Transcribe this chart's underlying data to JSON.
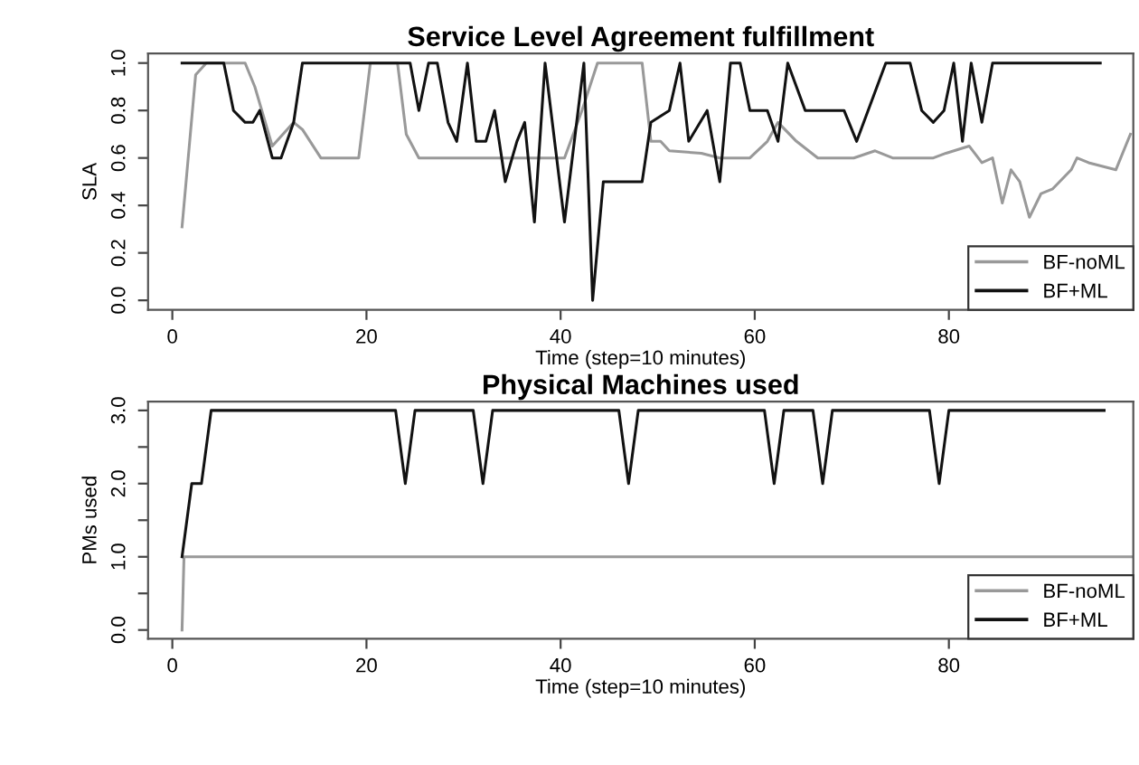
{
  "chart_data": [
    {
      "type": "line",
      "title": "Service Level Agreement fulfillment",
      "xlabel": "Time (step=10 minutes)",
      "ylabel": "SLA",
      "xlim": [
        -2.5,
        99
      ],
      "xticks": [
        0,
        20,
        40,
        60,
        80
      ],
      "ylim": [
        -0.04,
        1.04
      ],
      "yticks": [
        {
          "value": 0,
          "label": "0.0"
        },
        0.2,
        0.4,
        0.6,
        0.8,
        {
          "value": 1,
          "label": "1.0"
        }
      ],
      "legend": "bottom right",
      "grid": false,
      "series": [
        {
          "name": "BF-noML",
          "color": "#999999",
          "x": [
            1,
            2.4,
            3.5,
            7.5,
            8.5,
            10.3,
            12.5,
            13.4,
            15.3,
            19.2,
            20.4,
            23.2,
            24.1,
            25.4,
            40.4,
            42.2,
            43.8,
            48.4,
            49.3,
            50.3,
            51.2,
            54.5,
            56.4,
            59.5,
            61.3,
            62.4,
            64.3,
            66.5,
            70.2,
            72.4,
            74.2,
            78.4,
            79.7,
            82.1,
            83.4,
            84.5,
            85.5,
            86.4,
            87.3,
            88.3,
            89.5,
            90.7,
            92.6,
            93.2,
            94.4,
            97.2,
            98.7
          ],
          "values": [
            0.31,
            0.95,
            1.0,
            1.0,
            0.9,
            0.65,
            0.75,
            0.72,
            0.6,
            0.6,
            1.0,
            1.0,
            0.7,
            0.6,
            0.6,
            0.8,
            1.0,
            1.0,
            0.67,
            0.67,
            0.63,
            0.62,
            0.6,
            0.6,
            0.67,
            0.75,
            0.67,
            0.6,
            0.6,
            0.63,
            0.6,
            0.6,
            0.62,
            0.65,
            0.58,
            0.6,
            0.41,
            0.55,
            0.5,
            0.35,
            0.45,
            0.47,
            0.55,
            0.6,
            0.58,
            0.55,
            0.7
          ]
        },
        {
          "name": "BF+ML",
          "color": "#111111",
          "x": [
            1,
            5.3,
            6.3,
            7.5,
            8.3,
            9,
            10.3,
            11.2,
            12.5,
            13.4,
            24.5,
            25.4,
            26.4,
            27.3,
            28.4,
            29.3,
            30.4,
            31.3,
            32.3,
            33.2,
            34.3,
            35.5,
            36.3,
            37.3,
            38.4,
            40.4,
            42.4,
            43.3,
            44.4,
            48.4,
            49.3,
            51.2,
            52.3,
            53.2,
            55.1,
            56.4,
            57.5,
            58.5,
            59.5,
            61.3,
            62.4,
            63.4,
            65.2,
            67,
            69.2,
            70.5,
            73.5,
            76,
            77.2,
            78.4,
            79.5,
            80.5,
            81.4,
            82.3,
            83.4,
            84.5,
            95.6
          ],
          "values": [
            1.0,
            1.0,
            0.8,
            0.75,
            0.75,
            0.8,
            0.6,
            0.6,
            0.75,
            1.0,
            1.0,
            0.8,
            1.0,
            1.0,
            0.75,
            0.67,
            1.0,
            0.67,
            0.67,
            0.8,
            0.5,
            0.67,
            0.75,
            0.33,
            1.0,
            0.33,
            1.0,
            0.0,
            0.5,
            0.5,
            0.75,
            0.8,
            1.0,
            0.67,
            0.8,
            0.5,
            1.0,
            1.0,
            0.8,
            0.8,
            0.67,
            1.0,
            0.8,
            0.8,
            0.8,
            0.67,
            1.0,
            1.0,
            0.8,
            0.75,
            0.8,
            1.0,
            0.67,
            1.0,
            0.75,
            1.0,
            1.0
          ]
        }
      ]
    },
    {
      "type": "line",
      "title": "Physical Machines used",
      "xlabel": "Time (step=10 minutes)",
      "ylabel": "PMs used",
      "xlim": [
        -2.5,
        99
      ],
      "xticks": [
        0,
        20,
        40,
        60,
        80
      ],
      "ylim": [
        -0.12,
        3.12
      ],
      "yticks": [
        {
          "value": 0,
          "label": "0.0"
        },
        {
          "value": 0.5,
          "label": null
        },
        {
          "value": 1,
          "label": "1.0"
        },
        {
          "value": 1.5,
          "label": null
        },
        {
          "value": 2,
          "label": "2.0"
        },
        {
          "value": 2.5,
          "label": null
        },
        {
          "value": 3,
          "label": "3.0"
        }
      ],
      "legend": "bottom right",
      "grid": false,
      "series": [
        {
          "name": "BF-noML",
          "color": "#999999",
          "x": [
            1,
            1.2,
            99
          ],
          "values": [
            0,
            1,
            1
          ]
        },
        {
          "name": "BF+ML",
          "color": "#111111",
          "x": [
            1,
            2,
            3,
            4,
            23,
            24,
            25,
            31,
            32,
            33,
            46,
            47,
            48,
            61,
            62,
            63,
            66,
            67,
            68,
            78,
            79,
            80,
            96
          ],
          "values": [
            1,
            2,
            2,
            3,
            3,
            2,
            3,
            3,
            2,
            3,
            3,
            2,
            3,
            3,
            2,
            3,
            3,
            2,
            3,
            3,
            2,
            3,
            3
          ]
        }
      ]
    }
  ]
}
